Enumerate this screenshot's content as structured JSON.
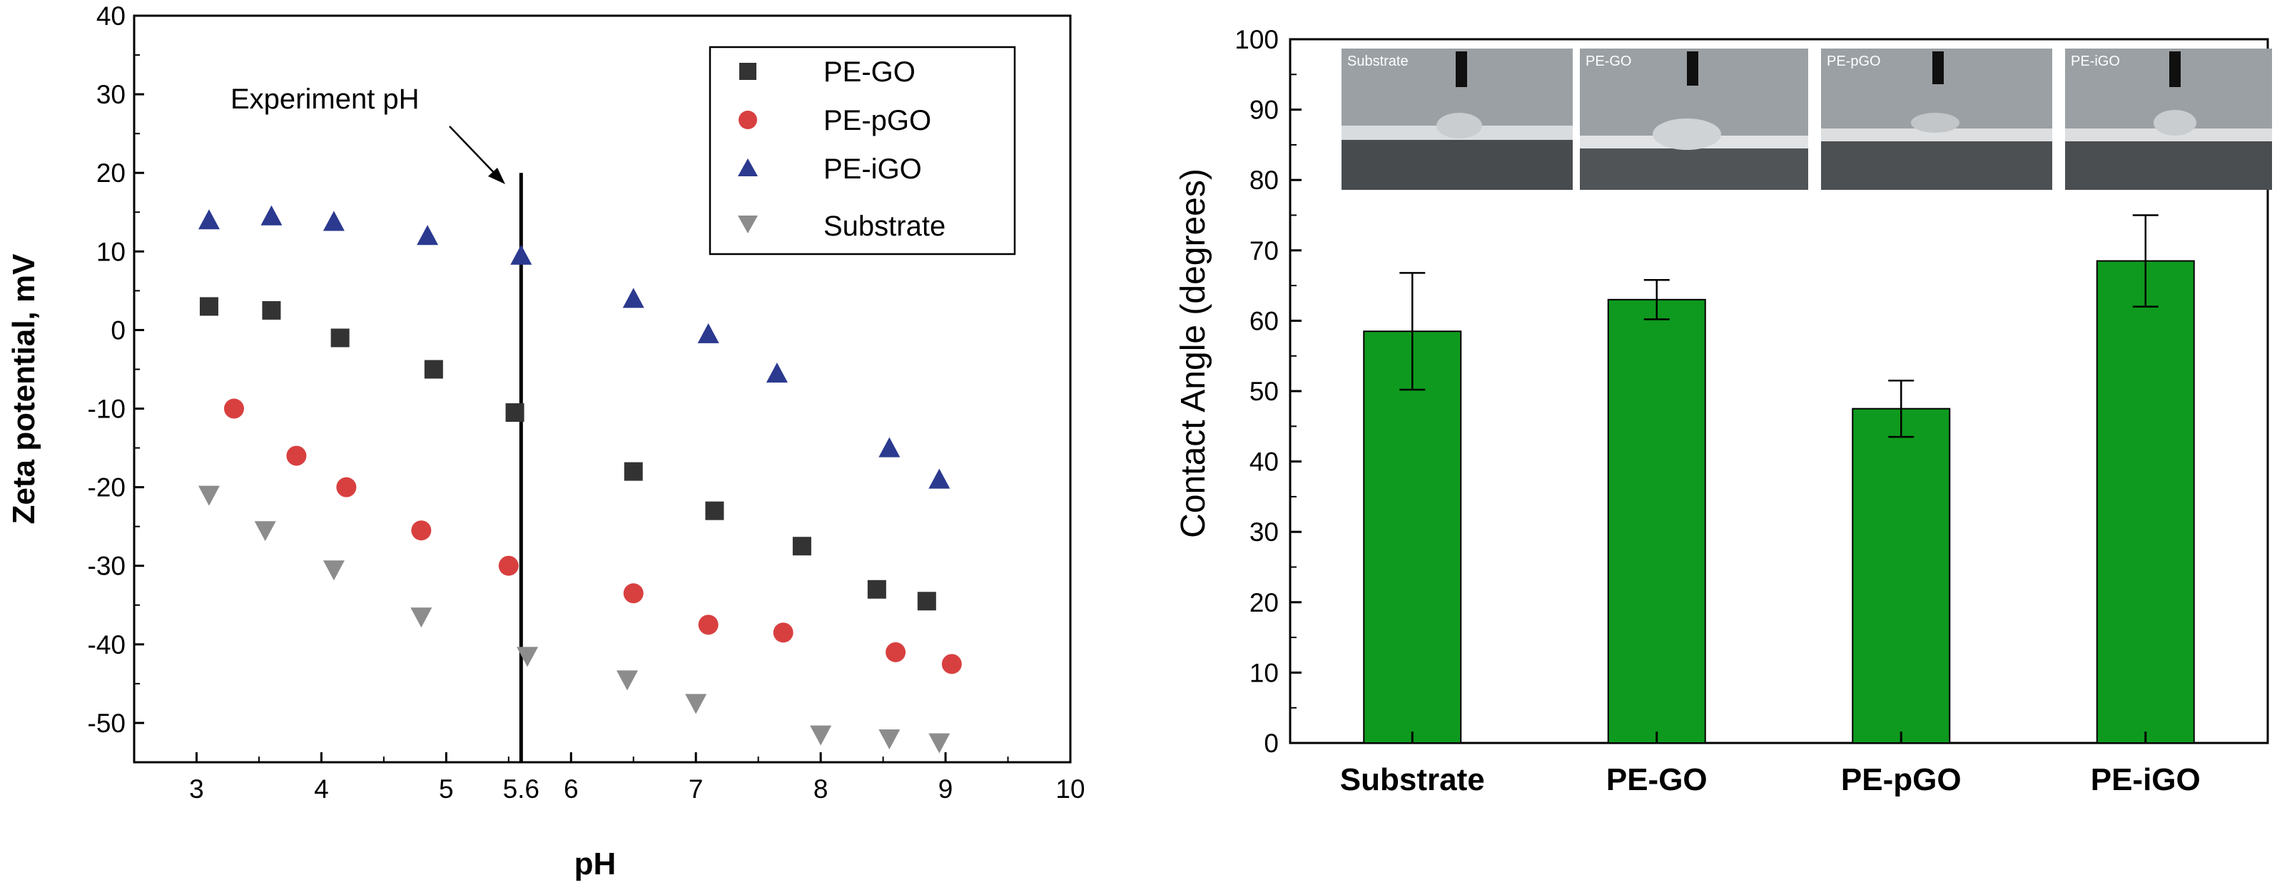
{
  "chart_data": [
    {
      "type": "scatter",
      "xlabel": "pH",
      "ylabel": "Zeta potential, mV",
      "xlim": [
        2.5,
        10
      ],
      "ylim": [
        -55,
        40
      ],
      "xticks": [
        3,
        4,
        5,
        6,
        7,
        8,
        9,
        10
      ],
      "extra_xtick": "5.6",
      "yticks": [
        40,
        30,
        20,
        10,
        0,
        -10,
        -20,
        -30,
        -40,
        -50
      ],
      "legend_position": "top-right",
      "annotation": {
        "text": "Experiment pH",
        "x": 5.6,
        "y_range": [
          -55,
          20
        ]
      },
      "series": [
        {
          "name": "PE-GO",
          "marker": "square",
          "color": "#333333",
          "x": [
            3.1,
            3.6,
            4.15,
            4.9,
            5.55,
            6.5,
            7.15,
            7.85,
            8.45,
            8.85
          ],
          "y": [
            3,
            2.5,
            -1,
            -5,
            -10.5,
            -18,
            -23,
            -27.5,
            -33,
            -34.5
          ]
        },
        {
          "name": "PE-pGO",
          "marker": "circle",
          "color": "#d84040",
          "x": [
            3.3,
            3.8,
            4.2,
            4.8,
            5.5,
            6.5,
            7.1,
            7.7,
            8.6,
            9.05
          ],
          "y": [
            -10,
            -16,
            -20,
            -25.5,
            -30,
            -33.5,
            -37.5,
            -38.5,
            -41,
            -42.5
          ]
        },
        {
          "name": "PE-iGO",
          "marker": "triangle-up",
          "color": "#2b3a8f",
          "x": [
            3.1,
            3.6,
            4.1,
            4.85,
            5.6,
            6.5,
            7.1,
            7.65,
            8.55,
            8.95
          ],
          "y": [
            14,
            14.5,
            13.8,
            12,
            9.5,
            4,
            -0.5,
            -5.5,
            -15,
            -19
          ]
        },
        {
          "name": "Substrate",
          "marker": "triangle-down",
          "color": "#8c8c8c",
          "x": [
            3.1,
            3.55,
            4.1,
            4.8,
            5.65,
            6.45,
            7.0,
            8.0,
            8.55,
            8.95
          ],
          "y": [
            -21,
            -25.5,
            -30.5,
            -36.5,
            -41.5,
            -44.5,
            -47.5,
            -51.5,
            -52,
            -52.5
          ]
        }
      ]
    },
    {
      "type": "bar",
      "ylabel": "Contact Angle (degrees)",
      "ylim": [
        0,
        100
      ],
      "yticks": [
        100,
        90,
        80,
        70,
        60,
        50,
        40,
        30,
        20,
        10,
        0
      ],
      "categories": [
        "Substrate",
        "PE-GO",
        "PE-pGO",
        "PE-iGO"
      ],
      "values": [
        58.5,
        63,
        47.5,
        68.5
      ],
      "errors": [
        8.3,
        2.8,
        4.0,
        6.5
      ],
      "bar_color": "#0e9a1e",
      "photo_labels": [
        "Substrate",
        "PE-GO",
        "PE-pGO",
        "PE-iGO"
      ]
    }
  ]
}
